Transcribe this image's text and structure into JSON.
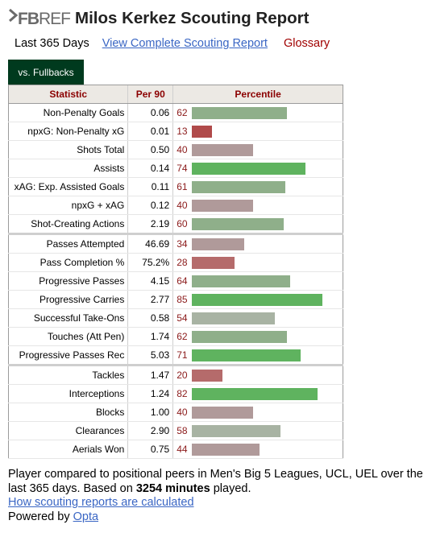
{
  "brand": {
    "fb": "FB",
    "ref": "REF"
  },
  "title": "Milos Kerkez Scouting Report",
  "subnav": {
    "current": "Last 365 Days",
    "complete_link": "View Complete Scouting Report",
    "glossary": "Glossary"
  },
  "tab": "vs. Fullbacks",
  "table": {
    "headers": [
      "Statistic",
      "Per 90",
      "Percentile"
    ],
    "groups": [
      [
        {
          "stat": "Non-Penalty Goals",
          "per90": "0.06",
          "pct": 62
        },
        {
          "stat": "npxG: Non-Penalty xG",
          "per90": "0.01",
          "pct": 13
        },
        {
          "stat": "Shots Total",
          "per90": "0.50",
          "pct": 40
        },
        {
          "stat": "Assists",
          "per90": "0.14",
          "pct": 74
        },
        {
          "stat": "xAG: Exp. Assisted Goals",
          "per90": "0.11",
          "pct": 61
        },
        {
          "stat": "npxG + xAG",
          "per90": "0.12",
          "pct": 40
        },
        {
          "stat": "Shot-Creating Actions",
          "per90": "2.19",
          "pct": 60
        }
      ],
      [
        {
          "stat": "Passes Attempted",
          "per90": "46.69",
          "pct": 34
        },
        {
          "stat": "Pass Completion %",
          "per90": "75.2%",
          "pct": 28
        },
        {
          "stat": "Progressive Passes",
          "per90": "4.15",
          "pct": 64
        },
        {
          "stat": "Progressive Carries",
          "per90": "2.77",
          "pct": 85
        },
        {
          "stat": "Successful Take-Ons",
          "per90": "0.58",
          "pct": 54
        },
        {
          "stat": "Touches (Att Pen)",
          "per90": "1.74",
          "pct": 62
        },
        {
          "stat": "Progressive Passes Rec",
          "per90": "5.03",
          "pct": 71
        }
      ],
      [
        {
          "stat": "Tackles",
          "per90": "1.47",
          "pct": 20
        },
        {
          "stat": "Interceptions",
          "per90": "1.24",
          "pct": 82
        },
        {
          "stat": "Blocks",
          "per90": "1.00",
          "pct": 40
        },
        {
          "stat": "Clearances",
          "per90": "2.90",
          "pct": 58
        },
        {
          "stat": "Aerials Won",
          "per90": "0.75",
          "pct": 44
        }
      ]
    ]
  },
  "footer": {
    "line1_pre": "Player compared to positional peers in Men's Big 5 Leagues, UCL, UEL over the last 365 days. Based on ",
    "minutes": "3254 minutes",
    "line1_post": " played.",
    "how_link": "How scouting reports are calculated",
    "powered_pre": "Powered by ",
    "powered_link": "Opta"
  },
  "colors": {
    "tab_bg": "#003a1e",
    "header_text": "#8b0000",
    "bar_high": "#5fb35f",
    "bar_mid_high": "#8faf8a",
    "bar_mid": "#a8b3a3",
    "bar_mid_low": "#b09a9a",
    "bar_low": "#b56b6b",
    "bar_very_low": "#b04a4a",
    "link": "#3a66c4"
  }
}
